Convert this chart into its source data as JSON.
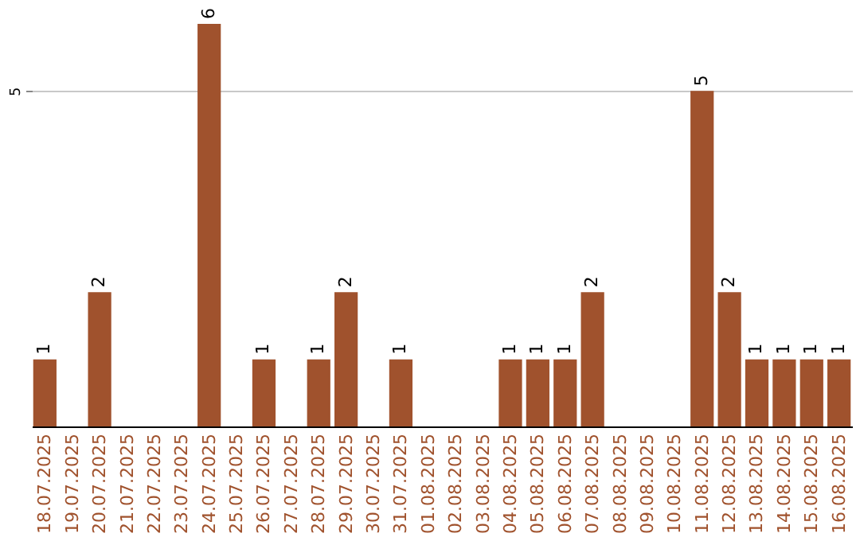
{
  "chart_data": {
    "type": "bar",
    "categories": [
      "18.07.2025",
      "19.07.2025",
      "20.07.2025",
      "21.07.2025",
      "22.07.2025",
      "23.07.2025",
      "24.07.2025",
      "25.07.2025",
      "26.07.2025",
      "27.07.2025",
      "28.07.2025",
      "29.07.2025",
      "30.07.2025",
      "31.07.2025",
      "01.08.2025",
      "02.08.2025",
      "03.08.2025",
      "04.08.2025",
      "05.08.2025",
      "06.08.2025",
      "07.08.2025",
      "08.08.2025",
      "09.08.2025",
      "10.08.2025",
      "11.08.2025",
      "12.08.2025",
      "13.08.2025",
      "14.08.2025",
      "15.08.2025",
      "16.08.2025"
    ],
    "values": [
      1,
      0,
      2,
      0,
      0,
      0,
      6,
      0,
      1,
      0,
      1,
      2,
      0,
      1,
      0,
      0,
      0,
      1,
      1,
      1,
      2,
      0,
      0,
      0,
      5,
      2,
      1,
      1,
      1,
      1
    ],
    "value_labels": [
      "1",
      null,
      "2",
      null,
      null,
      null,
      "6",
      null,
      "1",
      null,
      "1",
      "2",
      null,
      "1",
      null,
      null,
      null,
      "1",
      "1",
      "1",
      "2",
      null,
      null,
      null,
      "5",
      "2",
      "1",
      "1",
      "1",
      "1"
    ],
    "color": "#a0522d",
    "ylim": [
      0,
      6
    ],
    "yticks": [
      5
    ],
    "grid": "y"
  }
}
